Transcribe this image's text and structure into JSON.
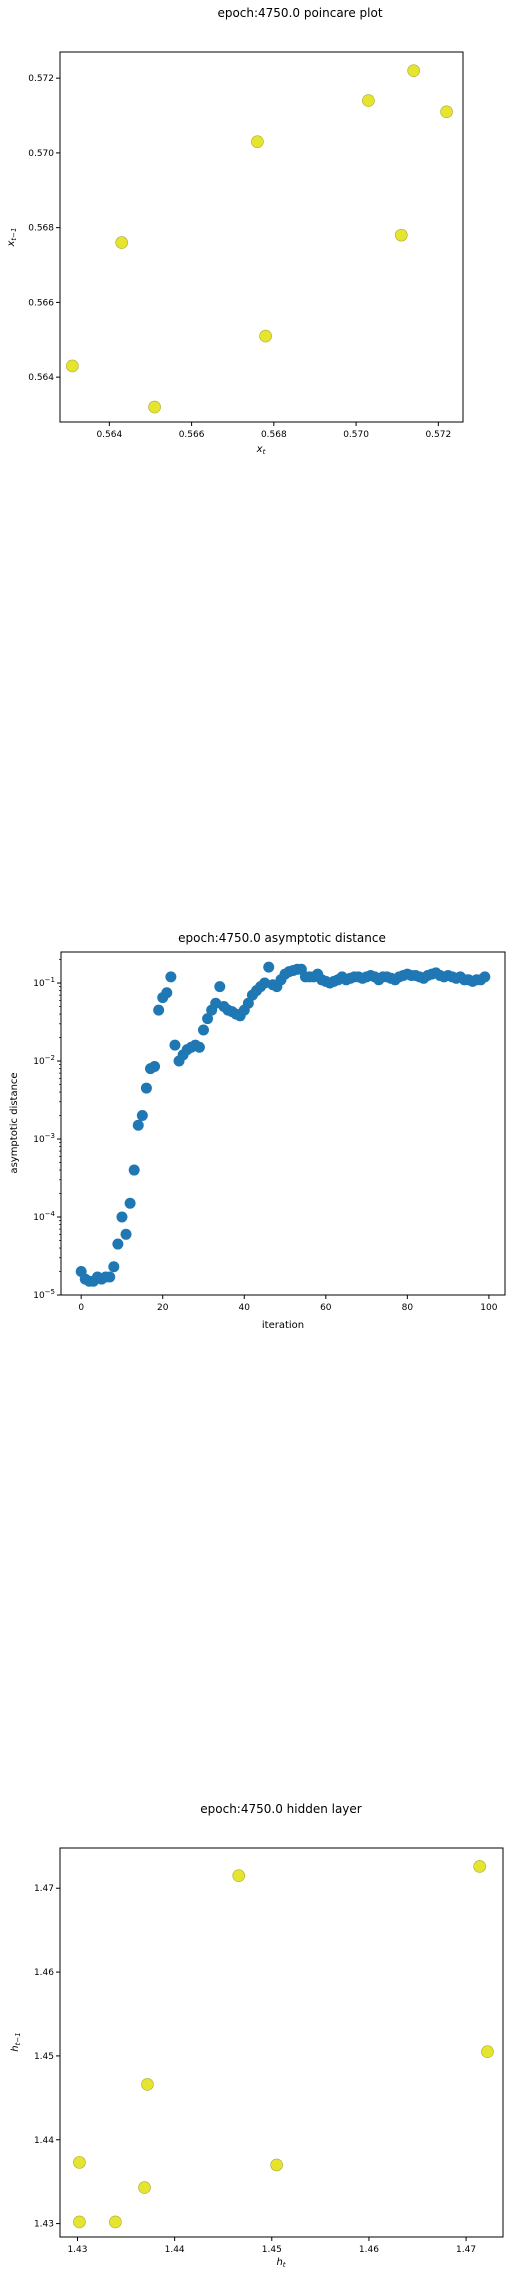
{
  "chart_data": [
    {
      "type": "scatter",
      "title": "epoch:4750.0 poincare plot",
      "xlabel": "x_t",
      "ylabel": "x_{t-1}",
      "xlim": [
        0.5628,
        0.5726
      ],
      "ylim": [
        0.5628,
        0.5727
      ],
      "xticks": [
        "0.564",
        "0.566",
        "0.568",
        "0.570",
        "0.572"
      ],
      "yticks": [
        "0.564",
        "0.566",
        "0.568",
        "0.570",
        "0.572"
      ],
      "marker_color": "#e5e530",
      "points": [
        {
          "x": 0.5631,
          "y": 0.5643
        },
        {
          "x": 0.5643,
          "y": 0.5676
        },
        {
          "x": 0.5651,
          "y": 0.5632
        },
        {
          "x": 0.5676,
          "y": 0.5703
        },
        {
          "x": 0.5678,
          "y": 0.5651
        },
        {
          "x": 0.5703,
          "y": 0.5714
        },
        {
          "x": 0.5711,
          "y": 0.5678
        },
        {
          "x": 0.5714,
          "y": 0.5722
        },
        {
          "x": 0.5722,
          "y": 0.5711
        }
      ]
    },
    {
      "type": "scatter",
      "title": "epoch:4750.0 asymptotic distance",
      "xlabel": "iteration",
      "ylabel": "asymptotic distance",
      "yscale": "log",
      "xlim": [
        -4.95,
        103.95
      ],
      "ylim": [
        1e-05,
        0.25
      ],
      "xticks": [
        "0",
        "20",
        "40",
        "60",
        "80",
        "100"
      ],
      "yticks": [
        "10^{-5}",
        "10^{-4}",
        "10^{-3}",
        "10^{-2}",
        "10^{-1}"
      ],
      "marker_color": "#1f77b4",
      "x": [
        0,
        1,
        2,
        3,
        4,
        5,
        6,
        7,
        8,
        9,
        10,
        11,
        12,
        13,
        14,
        15,
        16,
        17,
        18,
        19,
        20,
        21,
        22,
        23,
        24,
        25,
        26,
        27,
        28,
        29,
        30,
        31,
        32,
        33,
        34,
        35,
        36,
        37,
        38,
        39,
        40,
        41,
        42,
        43,
        44,
        45,
        46,
        47,
        48,
        49,
        50,
        51,
        52,
        53,
        54,
        55,
        56,
        57,
        58,
        59,
        60,
        61,
        62,
        63,
        64,
        65,
        66,
        67,
        68,
        69,
        70,
        71,
        72,
        73,
        74,
        75,
        76,
        77,
        78,
        79,
        80,
        81,
        82,
        83,
        84,
        85,
        86,
        87,
        88,
        89,
        90,
        91,
        92,
        93,
        94,
        95,
        96,
        97,
        98,
        99
      ],
      "y": [
        2e-05,
        1.6e-05,
        1.5e-05,
        1.5e-05,
        1.7e-05,
        1.6e-05,
        1.7e-05,
        1.7e-05,
        2.3e-05,
        4.5e-05,
        0.0001,
        6e-05,
        0.00015,
        0.0004,
        0.0015,
        0.002,
        0.0045,
        0.008,
        0.0085,
        0.045,
        0.065,
        0.075,
        0.12,
        0.016,
        0.01,
        0.012,
        0.014,
        0.015,
        0.016,
        0.015,
        0.025,
        0.035,
        0.045,
        0.055,
        0.09,
        0.05,
        0.045,
        0.043,
        0.04,
        0.038,
        0.045,
        0.055,
        0.07,
        0.08,
        0.09,
        0.1,
        0.16,
        0.095,
        0.09,
        0.11,
        0.13,
        0.14,
        0.145,
        0.15,
        0.15,
        0.12,
        0.12,
        0.12,
        0.13,
        0.11,
        0.105,
        0.1,
        0.105,
        0.11,
        0.12,
        0.11,
        0.115,
        0.12,
        0.12,
        0.115,
        0.12,
        0.125,
        0.12,
        0.11,
        0.12,
        0.12,
        0.115,
        0.11,
        0.12,
        0.125,
        0.13,
        0.125,
        0.125,
        0.12,
        0.115,
        0.125,
        0.13,
        0.135,
        0.125,
        0.12,
        0.125,
        0.12,
        0.115,
        0.12,
        0.11,
        0.11,
        0.105,
        0.11,
        0.11,
        0.12
      ]
    },
    {
      "type": "scatter",
      "title": "epoch:4750.0 hidden layer",
      "xlabel": "h_t",
      "ylabel": "h_{t-1}",
      "xlim": [
        1.4282,
        1.4738
      ],
      "ylim": [
        1.4284,
        1.4748
      ],
      "xticks": [
        "1.43",
        "1.44",
        "1.45",
        "1.46",
        "1.47"
      ],
      "yticks": [
        "1.43",
        "1.44",
        "1.45",
        "1.46",
        "1.47"
      ],
      "marker_color": "#e5e530",
      "points": [
        {
          "x": 1.4302,
          "y": 1.4373
        },
        {
          "x": 1.4302,
          "y": 1.4302
        },
        {
          "x": 1.4339,
          "y": 1.4302
        },
        {
          "x": 1.4369,
          "y": 1.4343
        },
        {
          "x": 1.4372,
          "y": 1.4466
        },
        {
          "x": 1.4466,
          "y": 1.4715
        },
        {
          "x": 1.4505,
          "y": 1.437
        },
        {
          "x": 1.4714,
          "y": 1.4726
        },
        {
          "x": 1.4722,
          "y": 1.4505
        }
      ]
    }
  ]
}
